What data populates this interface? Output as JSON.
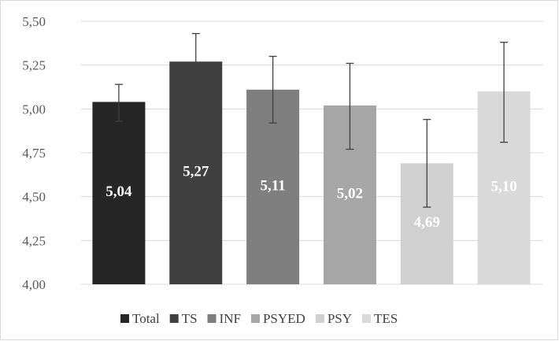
{
  "chart_data": {
    "type": "bar",
    "title": "",
    "xlabel": "",
    "ylabel": "",
    "ylim": [
      4.0,
      5.5
    ],
    "yticks": [
      4.0,
      4.25,
      4.5,
      4.75,
      5.0,
      5.25,
      5.5
    ],
    "ytick_labels": [
      "4,00",
      "4,25",
      "4,50",
      "4,75",
      "5,00",
      "5,25",
      "5,50"
    ],
    "grid": true,
    "legend_position": "bottom",
    "categories": [
      "Total",
      "TS",
      "INF",
      "PSYED",
      "PSY",
      "TES"
    ],
    "series": [
      {
        "name": "Total",
        "color": "#262626",
        "value": 5.04,
        "label": "5,04",
        "error_low": 4.93,
        "error_high": 5.14,
        "label_color": "#ffffff"
      },
      {
        "name": "TS",
        "color": "#404040",
        "value": 5.27,
        "label": "5,27",
        "error_low": 5.1,
        "error_high": 5.43,
        "label_color": "#ffffff"
      },
      {
        "name": "INF",
        "color": "#7f7f7f",
        "value": 5.11,
        "label": "5,11",
        "error_low": 4.92,
        "error_high": 5.3,
        "label_color": "#ffffff"
      },
      {
        "name": "PSYED",
        "color": "#a6a6a6",
        "value": 5.02,
        "label": "5,02",
        "error_low": 4.77,
        "error_high": 5.26,
        "label_color": "#ffffff"
      },
      {
        "name": "PSY",
        "color": "#d0d0d0",
        "value": 4.69,
        "label": "4,69",
        "error_low": 4.44,
        "error_high": 4.94,
        "label_color": "#ffffff"
      },
      {
        "name": "TES",
        "color": "#d9d9d9",
        "value": 5.1,
        "label": "5,10",
        "error_low": 4.81,
        "error_high": 5.38,
        "label_color": "#ffffff"
      }
    ],
    "gridline_color": "#d9d9d9",
    "errorbar_color": "#404040"
  }
}
